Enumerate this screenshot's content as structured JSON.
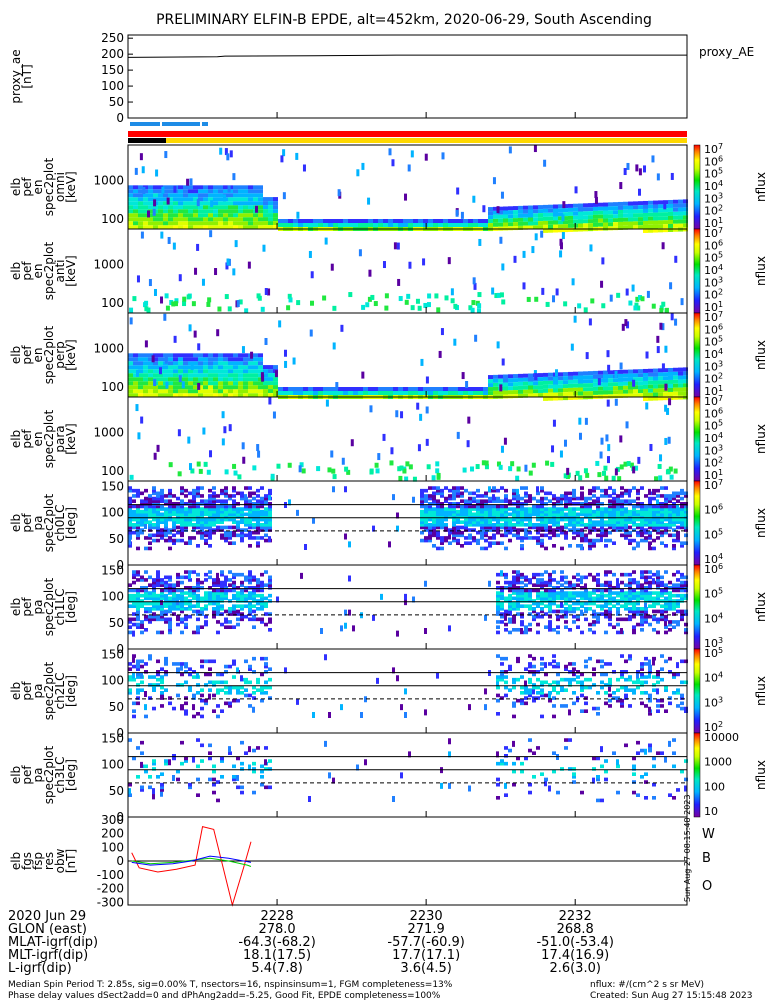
{
  "title": "PRELIMINARY ELFIN-B EPDE, alt=452km, 2020-06-29, South Ascending",
  "chart_data": [
    {
      "type": "line",
      "ylabel": [
        "proxy_ae",
        "[nT]"
      ],
      "yticks": [
        "250",
        "200",
        "150",
        "100",
        "50",
        "0"
      ],
      "ylim": [
        0,
        260
      ],
      "legend": "proxy_AE",
      "series": [
        {
          "name": "proxy_AE",
          "color": "#000000",
          "x": [
            2226.0,
            2227.2,
            2227.3,
            2228.5,
            2229.6,
            2233.5
          ],
          "values": [
            190,
            192,
            194,
            195,
            197,
            197
          ]
        }
      ]
    },
    {
      "type": "heatmap",
      "ylabel": [
        "elb",
        "pef",
        "en",
        "spec2plot",
        "omni",
        "[keV]"
      ],
      "yticks": [
        "1000",
        "100"
      ],
      "colorbar": {
        "ticks": [
          "10^7",
          "10^6",
          "10^5",
          "10^4",
          "10^3",
          "10^2",
          "10^1"
        ],
        "label": "nflux"
      }
    },
    {
      "type": "heatmap",
      "ylabel": [
        "elb",
        "pef",
        "en",
        "spec2plot",
        "anti",
        "[keV]"
      ],
      "yticks": [
        "1000",
        "100"
      ],
      "colorbar": {
        "ticks": [
          "10^7",
          "10^6",
          "10^5",
          "10^4",
          "10^3",
          "10^2",
          "10^1"
        ],
        "label": "nflux"
      }
    },
    {
      "type": "heatmap",
      "ylabel": [
        "elb",
        "pef",
        "en",
        "spec2plot",
        "perp",
        "[keV]"
      ],
      "yticks": [
        "1000",
        "100"
      ],
      "colorbar": {
        "ticks": [
          "10^7",
          "10^6",
          "10^5",
          "10^4",
          "10^3",
          "10^2",
          "10^1"
        ],
        "label": "nflux"
      }
    },
    {
      "type": "heatmap",
      "ylabel": [
        "elb",
        "pef",
        "en",
        "spec2plot",
        "para",
        "[keV]"
      ],
      "yticks": [
        "1000",
        "100"
      ],
      "colorbar": {
        "ticks": [
          "10^7",
          "10^6",
          "10^5",
          "10^4",
          "10^3",
          "10^2",
          "10^1"
        ],
        "label": "nflux"
      }
    },
    {
      "type": "heatmap",
      "ylabel": [
        "elb",
        "pef",
        "pa",
        "spec2plot",
        "ch0LC",
        "[deg]"
      ],
      "yticks": [
        "150",
        "100",
        "50",
        "0"
      ],
      "colorbar": {
        "ticks": [
          "10^7",
          "10^6",
          "10^5",
          "10^4"
        ],
        "label": "nflux"
      }
    },
    {
      "type": "heatmap",
      "ylabel": [
        "elb",
        "pef",
        "pa",
        "spec2plot",
        "ch1LC",
        "[deg]"
      ],
      "yticks": [
        "150",
        "100",
        "50",
        "0"
      ],
      "colorbar": {
        "ticks": [
          "10^6",
          "10^5",
          "10^4",
          "10^3"
        ],
        "label": "nflux"
      }
    },
    {
      "type": "heatmap",
      "ylabel": [
        "elb",
        "pef",
        "pa",
        "spec2plot",
        "ch2LC",
        "[deg]"
      ],
      "yticks": [
        "150",
        "100",
        "50",
        "0"
      ],
      "colorbar": {
        "ticks": [
          "10^5",
          "10^4",
          "10^3",
          "10^2"
        ],
        "label": "nflux"
      }
    },
    {
      "type": "heatmap",
      "ylabel": [
        "elb",
        "pef",
        "pa",
        "spec2plot",
        "ch3LC",
        "[deg]"
      ],
      "yticks": [
        "150",
        "100",
        "50",
        "0"
      ],
      "colorbar": {
        "ticks": [
          "10000",
          "1000",
          "100",
          "10"
        ],
        "label": "nflux"
      }
    },
    {
      "type": "line",
      "ylabel": [
        "elb",
        "fgs",
        "fsp",
        "res",
        "obw",
        "[nT]"
      ],
      "yticks": [
        "300",
        "200",
        "100",
        "0",
        "-100",
        "-200",
        "-300"
      ],
      "ylim": [
        -320,
        320
      ],
      "series": [
        {
          "name": "W",
          "color": "#ff0000",
          "x": [
            2226.05,
            2226.15,
            2226.4,
            2226.65,
            2226.9,
            2227.0,
            2227.15,
            2227.4,
            2227.55,
            2227.65
          ],
          "values": [
            60,
            -50,
            -80,
            -60,
            -30,
            250,
            230,
            -320,
            -50,
            140
          ]
        },
        {
          "name": "B",
          "color": "#00cc00",
          "x": [
            2226.05,
            2226.3,
            2226.6,
            2226.85,
            2227.1,
            2227.35,
            2227.6,
            2227.65
          ],
          "values": [
            0,
            -20,
            -10,
            5,
            20,
            0,
            -30,
            -40
          ]
        },
        {
          "name": "O",
          "color": "#0000ff",
          "x": [
            2226.05,
            2226.3,
            2226.6,
            2226.85,
            2227.1,
            2227.35,
            2227.6,
            2227.65
          ],
          "values": [
            -10,
            -30,
            -20,
            0,
            35,
            20,
            -5,
            -10
          ]
        }
      ]
    }
  ],
  "xticks": [
    "2228",
    "2230",
    "2232"
  ],
  "xticks_values": [
    2228,
    2230,
    2232
  ],
  "xlim": [
    2226.0,
    2233.5
  ],
  "ephemeris": {
    "labels": [
      "2020 Jun 29",
      "GLON (east)",
      "MLAT-igrf(dip)",
      "MLT-igrf(dip)",
      "L-igrf(dip)"
    ],
    "columns": [
      [
        "2228",
        "278.0",
        "-64.3(-68.2)",
        "18.1(17.5)",
        "5.4(7.8)"
      ],
      [
        "2230",
        "271.9",
        "-57.7(-60.9)",
        "17.7(17.1)",
        "3.6(4.5)"
      ],
      [
        "2232",
        "268.8",
        "-51.0(-53.4)",
        "17.4(16.9)",
        "2.6(3.0)"
      ]
    ]
  },
  "footer": {
    "line1": "Median Spin Period T: 2.85s, sig=0.00% T, nsectors=16, nspinsinsum=1, FGM completeness=13%",
    "line2": "Phase delay values dSect2add=0 and dPhAng2add=-5.25, Good Fit, EPDE completeness=100%",
    "nflux_unit": "nflux: #/(cm^2 s sr MeV)",
    "created": "Created: Sun Aug 27 15:15:48 2023"
  },
  "side_stamp": "Sun Aug 27 08:15:48 2023",
  "colors": {
    "w": "#ff0000",
    "b": "#00cc00",
    "o": "#0000ff"
  }
}
